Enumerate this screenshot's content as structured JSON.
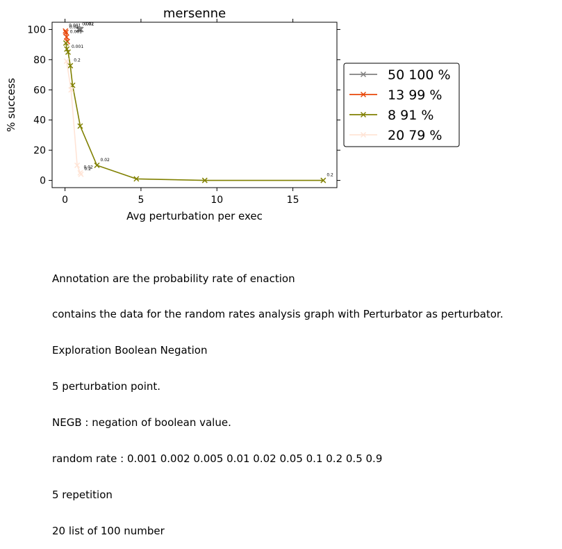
{
  "chart_data": {
    "type": "line",
    "title": "mersenne",
    "xlabel": "Avg perturbation per exec",
    "ylabel": "% success",
    "xlim": [
      -0.85,
      17.9
    ],
    "ylim": [
      -4.8,
      104.8
    ],
    "xticks": [
      0,
      5,
      10,
      15
    ],
    "yticks": [
      0,
      20,
      40,
      60,
      80,
      100
    ],
    "grid": false,
    "legend_position": "right-outside",
    "series": [
      {
        "name": "50 100 %",
        "color": "#808080",
        "points": [
          {
            "x": 0.9,
            "y": 100,
            "label": "0.001"
          },
          {
            "x": 0.95,
            "y": 100,
            "label": ""
          },
          {
            "x": 1.0,
            "y": 100,
            "label": ""
          },
          {
            "x": 1.05,
            "y": 100,
            "label": "0.02"
          }
        ]
      },
      {
        "name": "13 99 %",
        "color": "#e8470a",
        "points": [
          {
            "x": 0.03,
            "y": 99,
            "label": "0.001"
          },
          {
            "x": 0.06,
            "y": 98,
            "label": "0.02"
          },
          {
            "x": 0.1,
            "y": 95,
            "label": "0.001"
          },
          {
            "x": 0.15,
            "y": 92,
            "label": ""
          }
        ]
      },
      {
        "name": "8 91 %",
        "color": "#808000",
        "points": [
          {
            "x": 0.06,
            "y": 91,
            "label": ""
          },
          {
            "x": 0.12,
            "y": 87,
            "label": ""
          },
          {
            "x": 0.2,
            "y": 85,
            "label": "0.001"
          },
          {
            "x": 0.35,
            "y": 76,
            "label": "0.2"
          },
          {
            "x": 0.5,
            "y": 63,
            "label": ""
          },
          {
            "x": 1.0,
            "y": 36,
            "label": ""
          },
          {
            "x": 2.1,
            "y": 10,
            "label": "0.02"
          },
          {
            "x": 4.7,
            "y": 1,
            "label": ""
          },
          {
            "x": 9.2,
            "y": 0,
            "label": ""
          },
          {
            "x": 17.0,
            "y": 0,
            "label": "0.2"
          }
        ]
      },
      {
        "name": "20 79 %",
        "color": "#ffe4d6",
        "points": [
          {
            "x": 0.1,
            "y": 79,
            "label": ""
          },
          {
            "x": 0.4,
            "y": 60,
            "label": ""
          },
          {
            "x": 0.8,
            "y": 10,
            "label": ""
          },
          {
            "x": 1.0,
            "y": 5,
            "label": "0.02"
          },
          {
            "x": 1.05,
            "y": 4,
            "label": "0.2"
          }
        ]
      }
    ]
  },
  "notes": [
    "Annotation are the probability rate of enaction",
    "contains the data for the random rates analysis graph with Perturbator as perturbator.",
    "Exploration Boolean Negation",
    "5 perturbation point.",
    "NEGB : negation of boolean value.",
    "random rate : 0.001 0.002 0.005 0.01 0.02 0.05 0.1 0.2 0.5 0.9",
    "5 repetition",
    "20 list of 100 number"
  ]
}
